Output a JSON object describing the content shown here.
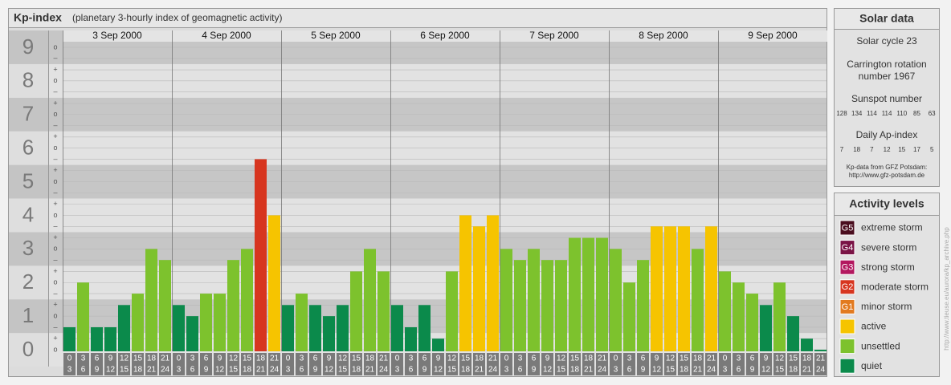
{
  "chart_data": {
    "type": "bar",
    "title": "Kp-index",
    "subtitle": "(planetary 3-hourly index of geomagnetic activity)",
    "days": [
      "3 Sep 2000",
      "4 Sep 2000",
      "5 Sep 2000",
      "6 Sep 2000",
      "7 Sep 2000",
      "8 Sep 2000",
      "9 Sep 2000"
    ],
    "hours": [
      [
        "0",
        "3"
      ],
      [
        "3",
        "6"
      ],
      [
        "6",
        "9"
      ],
      [
        "9",
        "12"
      ],
      [
        "12",
        "15"
      ],
      [
        "15",
        "18"
      ],
      [
        "18",
        "21"
      ],
      [
        "21",
        "24"
      ]
    ],
    "values": [
      0.67,
      2,
      0.67,
      0.67,
      1.33,
      1.67,
      3,
      2.67,
      1.33,
      1,
      1.67,
      1.67,
      2.67,
      3,
      5.67,
      4,
      1.33,
      1.67,
      1.33,
      1,
      1.33,
      2.33,
      3,
      2.33,
      1.33,
      0.67,
      1.33,
      0.33,
      2.33,
      4,
      3.67,
      4,
      3,
      2.67,
      3,
      2.67,
      2.67,
      3.33,
      3.33,
      3.33,
      3,
      2,
      2.67,
      3.67,
      3.67,
      3.67,
      3,
      3.67,
      2.33,
      2,
      1.67,
      1.33,
      2,
      1,
      0.33,
      0
    ],
    "colors": [
      "#0b8a4b",
      "#7dc22d",
      "#0b8a4b",
      "#0b8a4b",
      "#0b8a4b",
      "#7dc22d",
      "#7dc22d",
      "#7dc22d",
      "#0b8a4b",
      "#0b8a4b",
      "#7dc22d",
      "#7dc22d",
      "#7dc22d",
      "#7dc22d",
      "#d7351f",
      "#f6c400",
      "#0b8a4b",
      "#7dc22d",
      "#0b8a4b",
      "#0b8a4b",
      "#0b8a4b",
      "#7dc22d",
      "#7dc22d",
      "#7dc22d",
      "#0b8a4b",
      "#0b8a4b",
      "#0b8a4b",
      "#0b8a4b",
      "#7dc22d",
      "#f6c400",
      "#f6c400",
      "#f6c400",
      "#7dc22d",
      "#7dc22d",
      "#7dc22d",
      "#7dc22d",
      "#7dc22d",
      "#7dc22d",
      "#7dc22d",
      "#7dc22d",
      "#7dc22d",
      "#7dc22d",
      "#7dc22d",
      "#f6c400",
      "#f6c400",
      "#f6c400",
      "#7dc22d",
      "#f6c400",
      "#7dc22d",
      "#7dc22d",
      "#7dc22d",
      "#0b8a4b",
      "#7dc22d",
      "#0b8a4b",
      "#0b8a4b",
      "#0b8a4b"
    ],
    "ylim": [
      -0.5,
      9.5
    ],
    "yticks": [
      0,
      1,
      2,
      3,
      4,
      5,
      6,
      7,
      8,
      9
    ],
    "minor_ticks": [
      {
        "value": 0,
        "label": "o"
      },
      {
        "value": 0.33,
        "label": "+"
      },
      {
        "value": 0.67,
        "label": "–"
      },
      {
        "value": 1,
        "label": "o"
      },
      {
        "value": 1.33,
        "label": "+"
      },
      {
        "value": 1.67,
        "label": "–"
      },
      {
        "value": 2,
        "label": "o"
      },
      {
        "value": 2.33,
        "label": "+"
      },
      {
        "value": 2.67,
        "label": "–"
      },
      {
        "value": 3,
        "label": "o"
      },
      {
        "value": 3.33,
        "label": "+"
      },
      {
        "value": 3.67,
        "label": "–"
      },
      {
        "value": 4,
        "label": "o"
      },
      {
        "value": 4.33,
        "label": "+"
      },
      {
        "value": 4.67,
        "label": "–"
      },
      {
        "value": 5,
        "label": "o"
      },
      {
        "value": 5.33,
        "label": "+"
      },
      {
        "value": 5.67,
        "label": "–"
      },
      {
        "value": 6,
        "label": "o"
      },
      {
        "value": 6.33,
        "label": "+"
      },
      {
        "value": 6.67,
        "label": "–"
      },
      {
        "value": 7,
        "label": "o"
      },
      {
        "value": 7.33,
        "label": "+"
      },
      {
        "value": 7.67,
        "label": "–"
      },
      {
        "value": 8,
        "label": "o"
      },
      {
        "value": 8.33,
        "label": "+"
      },
      {
        "value": 8.67,
        "label": "–"
      },
      {
        "value": 9,
        "label": "o"
      }
    ],
    "grid": true
  },
  "solar_data": {
    "title": "Solar data",
    "cycle": "Solar cycle 23",
    "carrington": [
      "Carrington rotation",
      "number 1967"
    ],
    "sunspot_title": "Sunspot number",
    "sunspot": [
      128,
      134,
      114,
      114,
      110,
      85,
      63
    ],
    "ap_title": "Daily Ap-index",
    "ap": [
      7,
      18,
      7,
      12,
      15,
      17,
      5
    ],
    "source": [
      "Kp-data from GFZ Potsdam:",
      "http://www.gfz-potsdam.de"
    ]
  },
  "activity_levels": {
    "title": "Activity levels",
    "items": [
      {
        "code": "G5",
        "name": "extreme storm",
        "color": "#4a0d1e"
      },
      {
        "code": "G4",
        "name": "severe storm",
        "color": "#7a1345"
      },
      {
        "code": "G3",
        "name": "strong storm",
        "color": "#b3175f"
      },
      {
        "code": "G2",
        "name": "moderate storm",
        "color": "#d7351f"
      },
      {
        "code": "G1",
        "name": "minor storm",
        "color": "#e27a1f"
      },
      {
        "name": "active",
        "color": "#f6c400"
      },
      {
        "name": "unsettled",
        "color": "#7dc22d"
      },
      {
        "name": "quiet",
        "color": "#0b8a4b"
      }
    ]
  },
  "credit": "http://www.tieuse.eu/aurora/kp_archive.php"
}
